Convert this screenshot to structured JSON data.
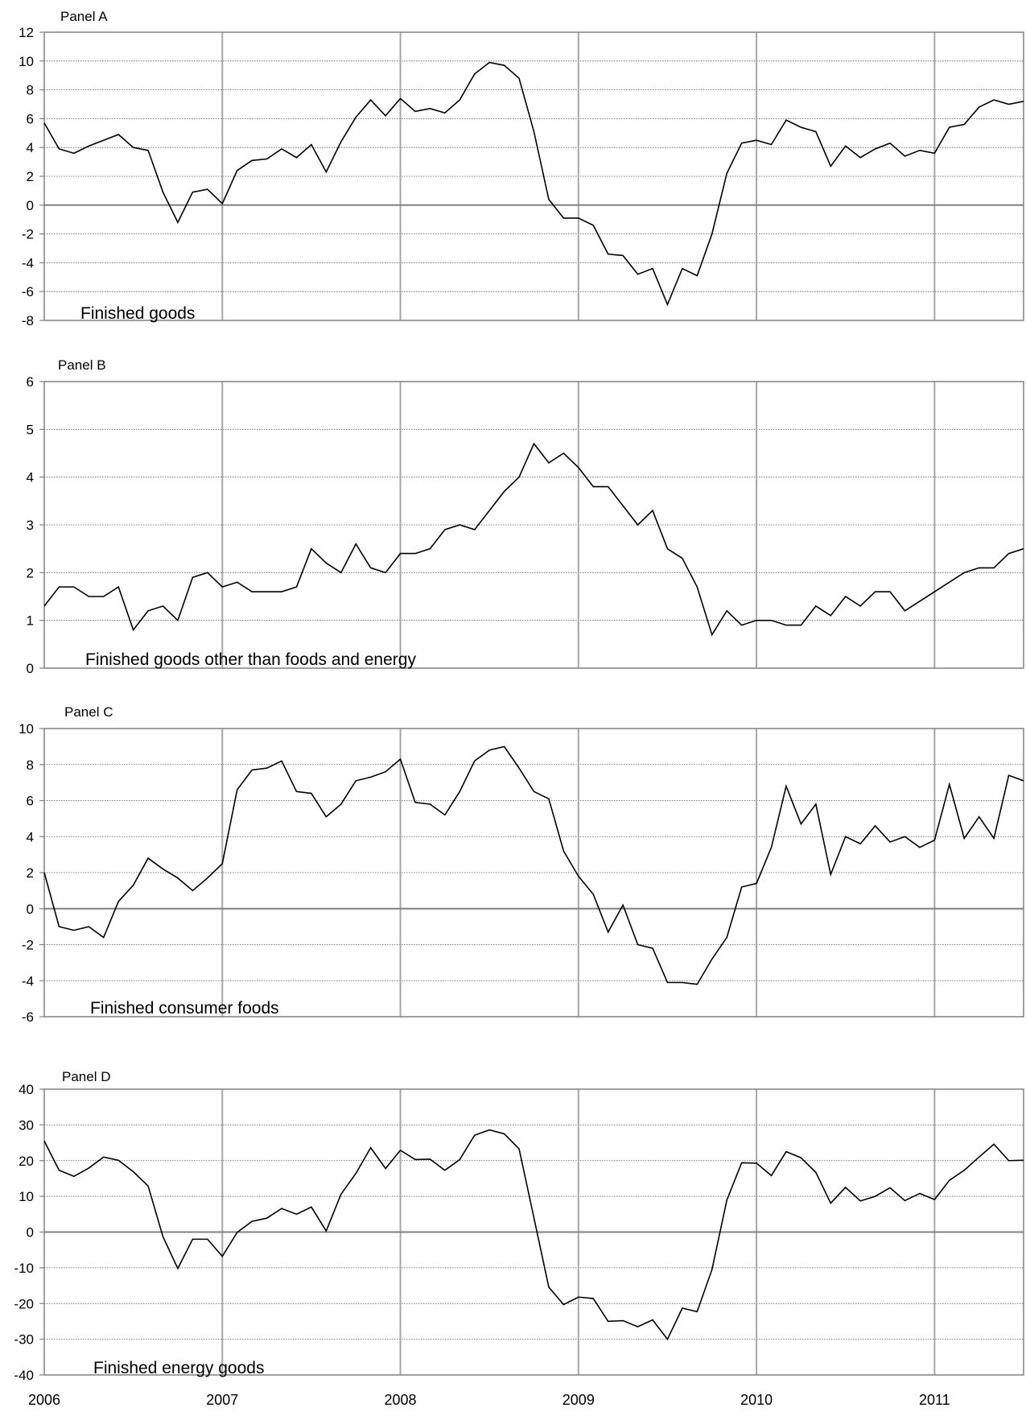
{
  "x_axis": {
    "year_labels": [
      "2006",
      "2007",
      "2008",
      "2009",
      "2010",
      "2011"
    ]
  },
  "chart_data": [
    {
      "type": "line",
      "panel_label": "Panel A",
      "series_label": "Finished goods",
      "ylim": [
        -8,
        12
      ],
      "yticks": [
        -8,
        -6,
        -4,
        -2,
        0,
        2,
        4,
        6,
        8,
        10,
        12
      ],
      "grid": true,
      "x_start": "2006-01",
      "x_end": "2011-07",
      "values": [
        5.7,
        3.9,
        3.6,
        4.1,
        4.5,
        4.9,
        4.0,
        3.8,
        0.9,
        -1.2,
        0.9,
        1.1,
        0.1,
        2.4,
        3.1,
        3.2,
        3.9,
        3.3,
        4.2,
        2.3,
        4.4,
        6.1,
        7.3,
        6.2,
        7.4,
        6.5,
        6.7,
        6.4,
        7.3,
        9.1,
        9.9,
        9.7,
        8.8,
        5.1,
        0.4,
        -0.9,
        -0.9,
        -1.4,
        -3.4,
        -3.5,
        -4.8,
        -4.4,
        -6.9,
        -4.4,
        -4.9,
        -2.0,
        2.2,
        4.3,
        4.5,
        4.2,
        5.9,
        5.4,
        5.1,
        2.7,
        4.1,
        3.3,
        3.9,
        4.3,
        3.4,
        3.8,
        3.6,
        5.4,
        5.6,
        6.8,
        7.3,
        7.0,
        7.2
      ]
    },
    {
      "type": "line",
      "panel_label": "Panel B",
      "series_label": "Finished goods other than foods and energy",
      "ylim": [
        0,
        6
      ],
      "yticks": [
        0,
        1,
        2,
        3,
        4,
        5,
        6
      ],
      "grid": true,
      "x_start": "2006-01",
      "x_end": "2011-07",
      "values": [
        1.3,
        1.7,
        1.7,
        1.5,
        1.5,
        1.7,
        0.8,
        1.2,
        1.3,
        1.0,
        1.9,
        2.0,
        1.7,
        1.8,
        1.6,
        1.6,
        1.6,
        1.7,
        2.5,
        2.2,
        2.0,
        2.6,
        2.1,
        2.0,
        2.4,
        2.4,
        2.5,
        2.9,
        3.0,
        2.9,
        3.3,
        3.7,
        4.0,
        4.7,
        4.3,
        4.5,
        4.2,
        3.8,
        3.8,
        3.4,
        3.0,
        3.3,
        2.5,
        2.3,
        1.7,
        0.7,
        1.2,
        0.9,
        1.0,
        1.0,
        0.9,
        0.9,
        1.3,
        1.1,
        1.5,
        1.3,
        1.6,
        1.6,
        1.2,
        1.4,
        1.6,
        1.8,
        2.0,
        2.1,
        2.1,
        2.4,
        2.5
      ]
    },
    {
      "type": "line",
      "panel_label": "Panel C",
      "series_label": "Finished consumer foods",
      "ylim": [
        -6,
        10
      ],
      "yticks": [
        -6,
        -4,
        -2,
        0,
        2,
        4,
        6,
        8,
        10
      ],
      "grid": true,
      "x_start": "2006-01",
      "x_end": "2011-07",
      "values": [
        2.0,
        -1.0,
        -1.2,
        -1.0,
        -1.6,
        0.4,
        1.3,
        2.8,
        2.2,
        1.7,
        1.0,
        1.7,
        2.5,
        6.6,
        7.7,
        7.8,
        8.2,
        6.5,
        6.4,
        5.1,
        5.8,
        7.1,
        7.3,
        7.6,
        8.3,
        5.9,
        5.8,
        5.2,
        6.5,
        8.2,
        8.8,
        9.0,
        7.8,
        6.5,
        6.1,
        3.2,
        1.8,
        0.8,
        -1.3,
        0.2,
        -2.0,
        -2.2,
        -4.1,
        -4.1,
        -4.2,
        -2.8,
        -1.6,
        1.2,
        1.4,
        3.4,
        6.8,
        4.7,
        5.8,
        1.9,
        4.0,
        3.6,
        4.6,
        3.7,
        4.0,
        3.4,
        3.8,
        6.9,
        3.9,
        5.1,
        3.9,
        7.4,
        7.1
      ]
    },
    {
      "type": "line",
      "panel_label": "Panel D",
      "series_label": "Finished energy goods",
      "ylim": [
        -40,
        40
      ],
      "yticks": [
        -40,
        -30,
        -20,
        -10,
        0,
        10,
        20,
        30,
        40
      ],
      "grid": true,
      "x_start": "2006-01",
      "x_end": "2011-07",
      "values": [
        25.5,
        17.3,
        15.6,
        17.9,
        21.0,
        20.1,
        16.9,
        12.9,
        -1.3,
        -10.2,
        -2.0,
        -2.0,
        -6.8,
        -0.1,
        3.0,
        3.9,
        6.6,
        5.0,
        7.0,
        0.3,
        10.6,
        16.4,
        23.6,
        17.8,
        22.9,
        20.3,
        20.4,
        17.3,
        20.3,
        27.1,
        28.6,
        27.5,
        23.3,
        4.0,
        -15.4,
        -20.3,
        -18.2,
        -18.6,
        -25.0,
        -24.8,
        -26.5,
        -24.6,
        -30.0,
        -21.3,
        -22.3,
        -10.5,
        8.9,
        19.4,
        19.3,
        15.8,
        22.5,
        20.8,
        16.7,
        8.1,
        12.5,
        8.7,
        10.0,
        12.4,
        8.8,
        10.8,
        9.1,
        14.5,
        17.3,
        21.0,
        24.6,
        20.0,
        20.1
      ]
    }
  ]
}
